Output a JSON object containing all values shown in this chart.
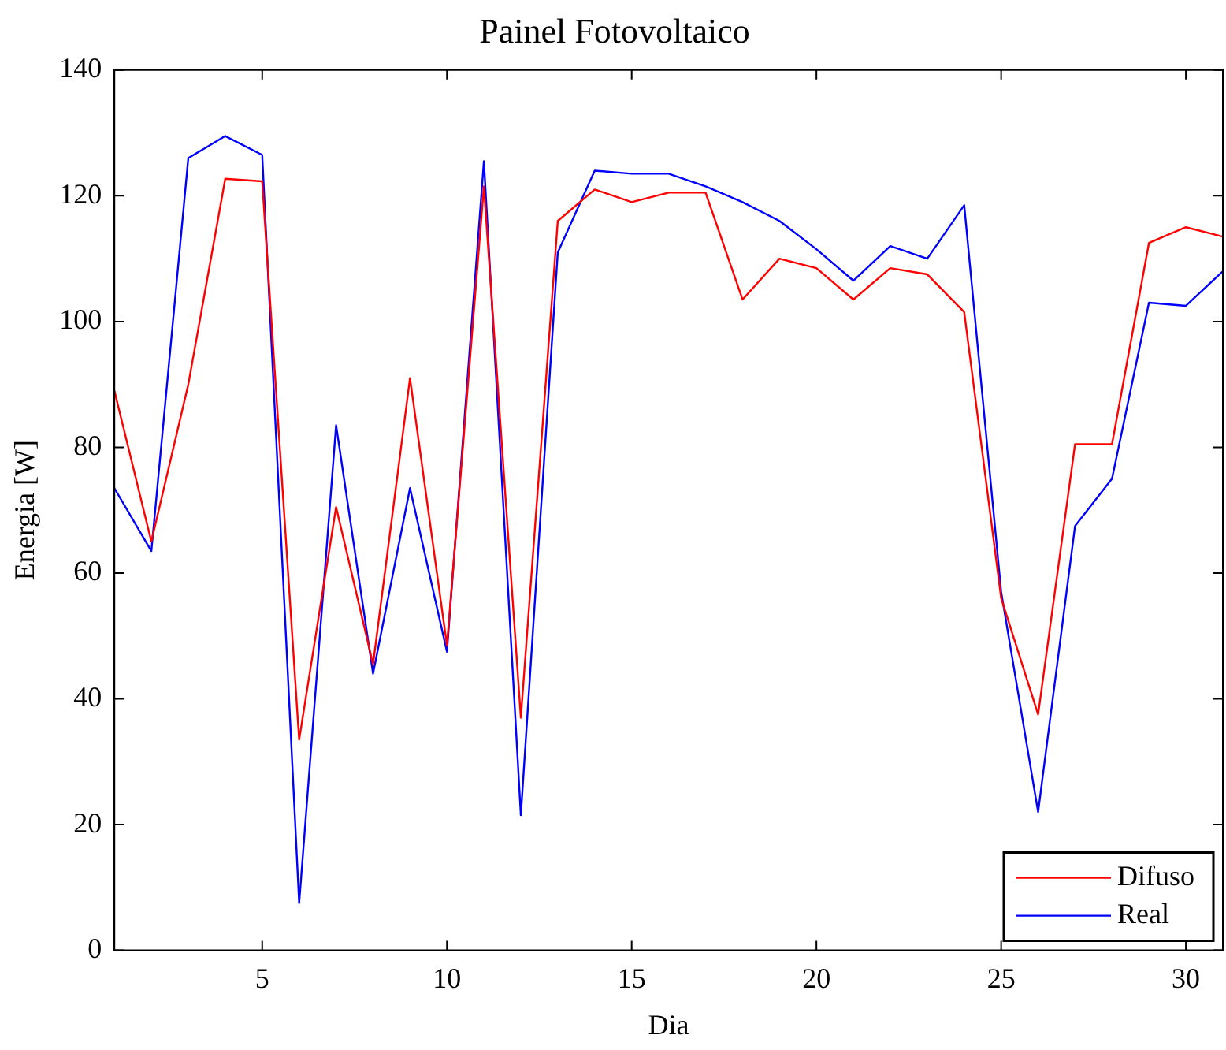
{
  "chart_data": {
    "type": "line",
    "title": "Painel Fotovoltaico",
    "xlabel": "Dia",
    "ylabel": "Energia [W]",
    "x": [
      1,
      2,
      3,
      4,
      5,
      6,
      7,
      8,
      9,
      10,
      11,
      12,
      13,
      14,
      15,
      16,
      17,
      18,
      19,
      20,
      21,
      22,
      23,
      24,
      25,
      26,
      27,
      28,
      29,
      30,
      31
    ],
    "series": [
      {
        "name": "Difuso",
        "color": "#ff0000",
        "values": [
          89,
          65,
          90,
          122.7,
          122.3,
          33.5,
          70.5,
          45.5,
          91,
          48.5,
          121.5,
          37,
          116,
          121,
          119,
          120.5,
          120.5,
          103.5,
          110,
          108.5,
          103.5,
          108.5,
          107.5,
          101.5,
          56,
          37.5,
          80.5,
          80.5,
          112.5,
          115,
          113.5
        ]
      },
      {
        "name": "Real",
        "color": "#0000ff",
        "values": [
          73.5,
          63.5,
          126,
          129.5,
          126.5,
          7.5,
          83.5,
          44,
          73.5,
          47.5,
          125.5,
          21.5,
          111,
          124,
          123.5,
          123.5,
          121.5,
          119,
          116,
          111.5,
          106.5,
          112,
          110,
          118.5,
          57,
          22,
          67.5,
          75,
          103,
          102.5,
          108
        ]
      }
    ],
    "xlim": [
      1,
      31
    ],
    "xticks": [
      5,
      10,
      15,
      20,
      25,
      30
    ],
    "ylim": [
      0,
      140
    ],
    "yticks": [
      0,
      20,
      40,
      60,
      80,
      100,
      120,
      140
    ],
    "grid": false,
    "legend": "bottom right",
    "marker": "none",
    "line_style": "solid"
  }
}
